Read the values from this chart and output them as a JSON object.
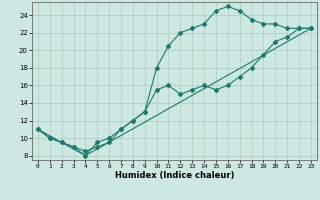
{
  "xlabel": "Humidex (Indice chaleur)",
  "ylabel": "",
  "background_color": "#cce8e0",
  "line_color": "#1a7a6e",
  "grid_color": "#b0c8c0",
  "xlim": [
    -0.5,
    23.5
  ],
  "ylim": [
    7.5,
    25.5
  ],
  "xticks": [
    0,
    1,
    2,
    3,
    4,
    5,
    6,
    7,
    8,
    9,
    10,
    11,
    12,
    13,
    14,
    15,
    16,
    17,
    18,
    19,
    20,
    21,
    22,
    23
  ],
  "yticks": [
    8,
    10,
    12,
    14,
    16,
    18,
    20,
    22,
    24
  ],
  "line1_x": [
    0,
    1,
    2,
    3,
    4,
    5,
    6,
    7,
    8,
    9,
    10,
    11,
    12,
    13,
    14,
    15,
    16,
    17,
    18,
    19,
    20,
    21,
    22,
    23
  ],
  "line1_y": [
    11,
    10,
    9.5,
    9,
    8,
    9.5,
    10,
    11,
    12,
    13,
    18,
    20.5,
    22,
    22.5,
    23,
    24.5,
    25,
    24.5,
    23.5,
    23,
    23,
    22.5,
    22.5,
    22.5
  ],
  "line2_x": [
    0,
    1,
    2,
    3,
    4,
    5,
    6,
    7,
    8,
    9,
    10,
    11,
    12,
    13,
    14,
    15,
    16,
    17,
    18,
    19,
    20,
    21,
    22,
    23
  ],
  "line2_y": [
    11,
    10,
    9.5,
    9,
    8.5,
    9,
    9.5,
    11,
    12,
    13,
    15.5,
    16,
    15,
    15.5,
    16,
    15.5,
    16,
    17,
    18,
    19.5,
    21,
    21.5,
    22.5,
    22.5
  ],
  "line3_x": [
    0,
    4,
    23
  ],
  "line3_y": [
    11,
    8,
    22.5
  ]
}
